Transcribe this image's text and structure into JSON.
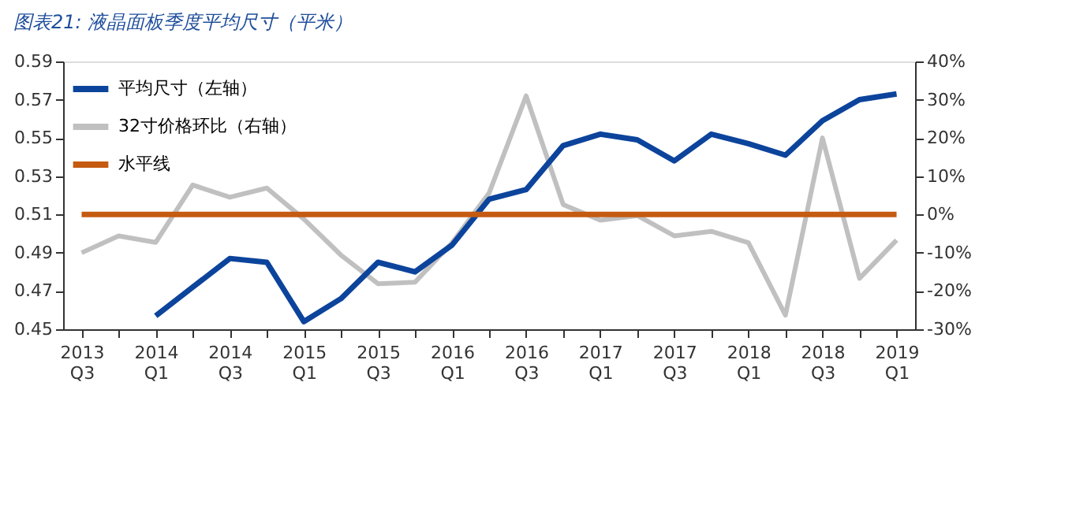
{
  "chart_data": {
    "type": "line",
    "title": "图表21: 液晶面板季度平均尺寸（平米）",
    "categories": [
      "2013 Q3",
      null,
      "2014 Q1",
      null,
      "2014 Q3",
      null,
      "2015 Q1",
      null,
      "2015 Q3",
      null,
      "2016 Q1",
      null,
      "2016 Q3",
      null,
      "2017 Q1",
      null,
      "2017 Q3",
      null,
      "2018 Q1",
      null,
      "2018 Q3",
      null,
      "2019 Q1"
    ],
    "series": [
      {
        "name": "平均尺寸（左轴）",
        "color": "#0c449c",
        "values": [
          null,
          null,
          0.457,
          0.472,
          0.487,
          0.485,
          0.454,
          0.466,
          0.485,
          0.48,
          0.494,
          0.518,
          0.523,
          0.546,
          0.552,
          0.549,
          0.538,
          0.552,
          0.547,
          0.541,
          0.559,
          0.57,
          0.573
        ]
      },
      {
        "name": "32寸价格环比（右轴）",
        "color": "#c0c0c0",
        "axis": "y2",
        "values": [
          -10,
          -5.6,
          -7.3,
          7.7,
          4.5,
          6.9,
          -1.2,
          -10.6,
          -18.1,
          -17.7,
          -7.4,
          5.6,
          31,
          2.6,
          -1.5,
          -0.3,
          -5.6,
          -4.4,
          -7.4,
          -26.3,
          20,
          -16.7,
          -6.7
        ]
      },
      {
        "name": "水平线",
        "color": "#c55a11",
        "values": [
          0.51,
          0.51,
          0.51,
          0.51,
          0.51,
          0.51,
          0.51,
          0.51,
          0.51,
          0.51,
          0.51,
          0.51,
          0.51,
          0.51,
          0.51,
          0.51,
          0.51,
          0.51,
          0.51,
          0.51,
          0.51,
          0.51,
          0.51
        ]
      }
    ],
    "ylim": [
      0.45,
      0.59
    ],
    "yticks": [
      0.45,
      0.47,
      0.49,
      0.51,
      0.53,
      0.55,
      0.57,
      0.59
    ],
    "y2lim": [
      -30,
      40
    ],
    "y2ticks": [
      {
        "value": -30,
        "label": "-30%"
      },
      {
        "value": -20,
        "label": "-20%"
      },
      {
        "value": -10,
        "label": "-10%"
      },
      {
        "value": 0,
        "label": "0%"
      },
      {
        "value": 10,
        "label": "10%"
      },
      {
        "value": 20,
        "label": "20%"
      },
      {
        "value": 30,
        "label": "30%"
      },
      {
        "value": 40,
        "label": "40%"
      }
    ],
    "grid": false,
    "legend": "top left",
    "marker": "none",
    "line_style": "solid"
  }
}
